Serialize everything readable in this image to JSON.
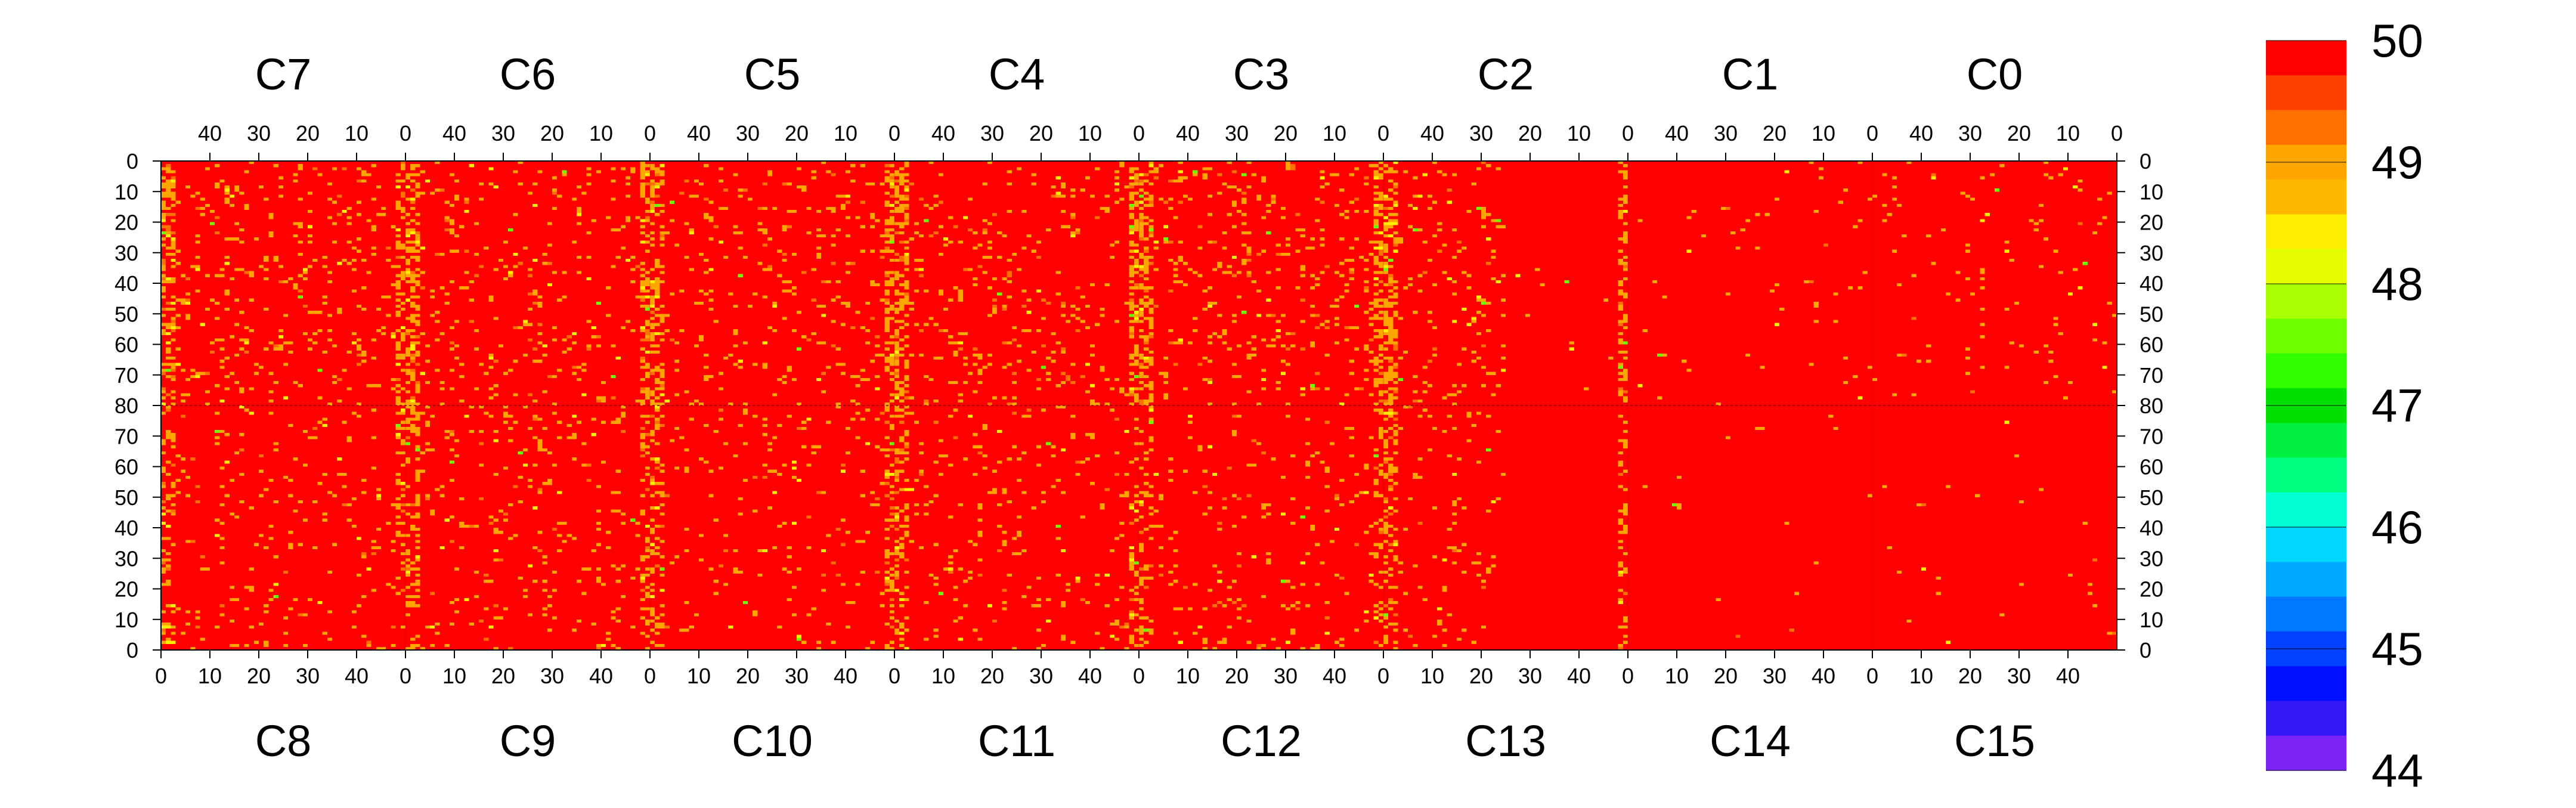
{
  "chart_data": {
    "type": "heatmap",
    "title": "",
    "xlabel": "",
    "ylabel": "",
    "color_range": [
      44,
      50
    ],
    "colorbar": {
      "ticks": [
        44,
        45,
        46,
        47,
        48,
        49,
        50
      ],
      "colors": [
        "#7a24f5",
        "#3418f4",
        "#0010ff",
        "#0042ff",
        "#0078ff",
        "#00aaff",
        "#00d7ff",
        "#00ffd2",
        "#00ff80",
        "#00f040",
        "#00e000",
        "#30ff00",
        "#70ff00",
        "#aaff00",
        "#e6ff00",
        "#ffee00",
        "#ffb800",
        "#ffa500",
        "#ff7000",
        "#ff4000",
        "#ff0000"
      ]
    },
    "columns": 8,
    "pixels_per_channel": 50,
    "top_half": {
      "channels": [
        "C7",
        "C6",
        "C5",
        "C4",
        "C3",
        "C2",
        "C1",
        "C0"
      ],
      "x_ticks": [
        40,
        30,
        20,
        10,
        0
      ],
      "x_direction": "descending",
      "y_ticks": [
        0,
        10,
        20,
        30,
        40,
        50,
        60,
        70,
        80
      ],
      "y_direction": "descending"
    },
    "bottom_half": {
      "channels": [
        "C8",
        "C9",
        "C10",
        "C11",
        "C12",
        "C13",
        "C14",
        "C15"
      ],
      "x_ticks": [
        0,
        10,
        20,
        30,
        40
      ],
      "x_direction": "ascending",
      "y_ticks": [
        70,
        60,
        50,
        40,
        30,
        20,
        10,
        0
      ],
      "y_direction": "ascending"
    },
    "rows_per_half": 80,
    "background_value": 50,
    "common_value_range": [
      49,
      49.6
    ],
    "notes_colors": {
      "dominant": "#ff0000",
      "speckle": "#ffa500"
    }
  }
}
